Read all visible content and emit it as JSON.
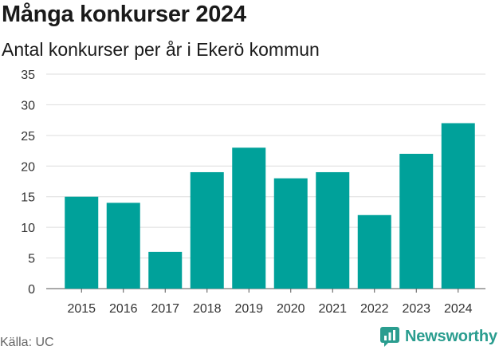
{
  "header": {
    "title": "Många konkurser 2024",
    "subtitle": "Antal konkurser per år i Ekerö kommun"
  },
  "footer": {
    "source": "Källa: UC",
    "brand": "Newsworthy"
  },
  "colors": {
    "bar": "#00a19a",
    "grid": "#dddddd",
    "brand": "#2a9d8f"
  },
  "icons": {
    "brand_logo": "newsworthy-logo-icon"
  },
  "chart_data": {
    "type": "bar",
    "title": "Många konkurser 2024",
    "subtitle": "Antal konkurser per år i Ekerö kommun",
    "xlabel": "",
    "ylabel": "",
    "categories": [
      "2015",
      "2016",
      "2017",
      "2018",
      "2019",
      "2020",
      "2021",
      "2022",
      "2023",
      "2024"
    ],
    "values": [
      15,
      14,
      6,
      19,
      23,
      18,
      19,
      12,
      22,
      27
    ],
    "ylim": [
      0,
      35
    ],
    "yticks": [
      0,
      5,
      10,
      15,
      20,
      25,
      30,
      35
    ],
    "grid": true,
    "legend": "none"
  }
}
